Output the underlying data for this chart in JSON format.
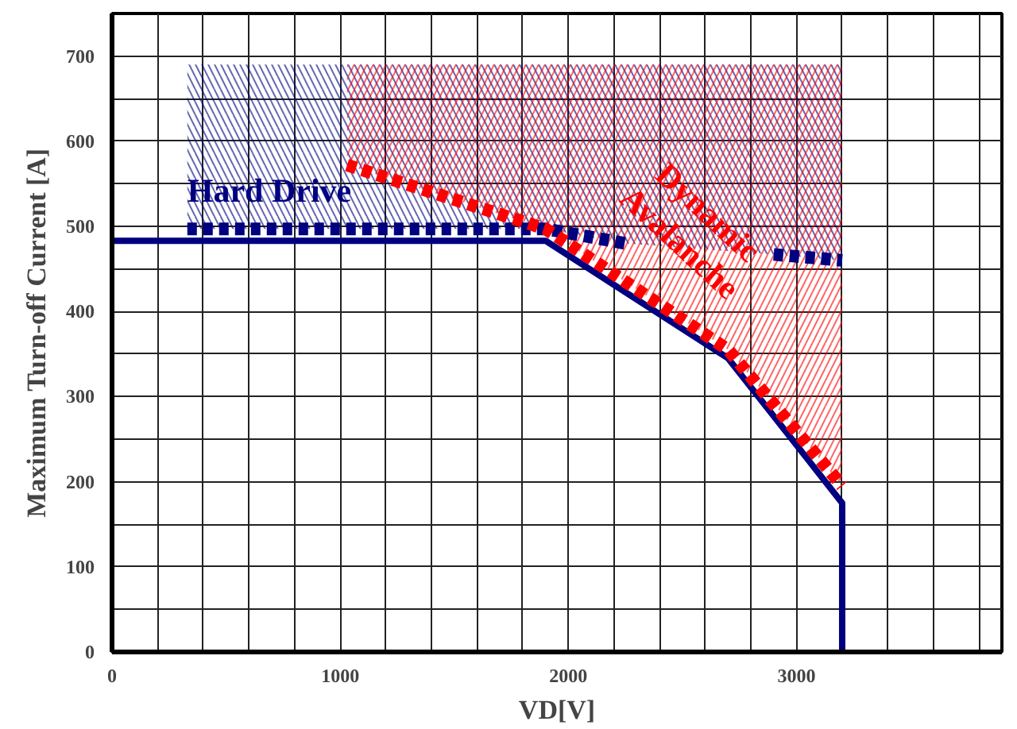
{
  "chart_data": {
    "type": "line",
    "xlabel": "VD[V]",
    "ylabel": "Maximum Turn-off Current [A]",
    "xlim": [
      0,
      3900
    ],
    "ylim": [
      0,
      750
    ],
    "xticks": [
      0,
      {
        "value": 200,
        "label": null
      },
      {
        "value": 400,
        "label": null
      },
      {
        "value": 600,
        "label": null
      },
      {
        "value": 800,
        "label": null
      },
      1000,
      {
        "value": 1200,
        "label": null
      },
      {
        "value": 1400,
        "label": null
      },
      {
        "value": 1600,
        "label": null
      },
      {
        "value": 1800,
        "label": null
      },
      2000,
      {
        "value": 2200,
        "label": null
      },
      {
        "value": 2400,
        "label": null
      },
      {
        "value": 2600,
        "label": null
      },
      {
        "value": 2800,
        "label": null
      },
      3000,
      {
        "value": 3200,
        "label": null
      },
      {
        "value": 3400,
        "label": null
      },
      {
        "value": 3600,
        "label": null
      },
      {
        "value": 3800,
        "label": null
      }
    ],
    "yticks": [
      0,
      {
        "value": 50,
        "label": null
      },
      100,
      {
        "value": 150,
        "label": null
      },
      200,
      {
        "value": 250,
        "label": null
      },
      300,
      {
        "value": 350,
        "label": null
      },
      400,
      {
        "value": 450,
        "label": null
      },
      500,
      {
        "value": 550,
        "label": null
      },
      600,
      {
        "value": 650,
        "label": null
      },
      700
    ],
    "grid": true,
    "series": [
      {
        "color": "#000080",
        "line_style": "solid",
        "x": [
          0,
          1900,
          2700,
          3200,
          3200
        ],
        "values": [
          483,
          483,
          345,
          175,
          0
        ]
      },
      {
        "name": "Hard Drive",
        "color": "#000080",
        "line_style": "dashed",
        "x": [
          330,
          1900,
          2250,
          2600,
          2900,
          3200
        ],
        "values": [
          497,
          497,
          480,
          null,
          467,
          460
        ],
        "lower": [
          497,
          497,
          480,
          473,
          467,
          460
        ],
        "upper": [
          690,
          690,
          690,
          690,
          690,
          690
        ]
      },
      {
        "name": "Dynamic Avalanche",
        "color": "#ff0000",
        "line_style": "dashed",
        "x": [
          1030,
          1900,
          2700,
          3200
        ],
        "values": [
          572,
          497,
          355,
          195
        ],
        "lower": [
          572,
          497,
          355,
          195
        ],
        "upper": [
          690,
          690,
          690,
          690
        ]
      }
    ]
  }
}
